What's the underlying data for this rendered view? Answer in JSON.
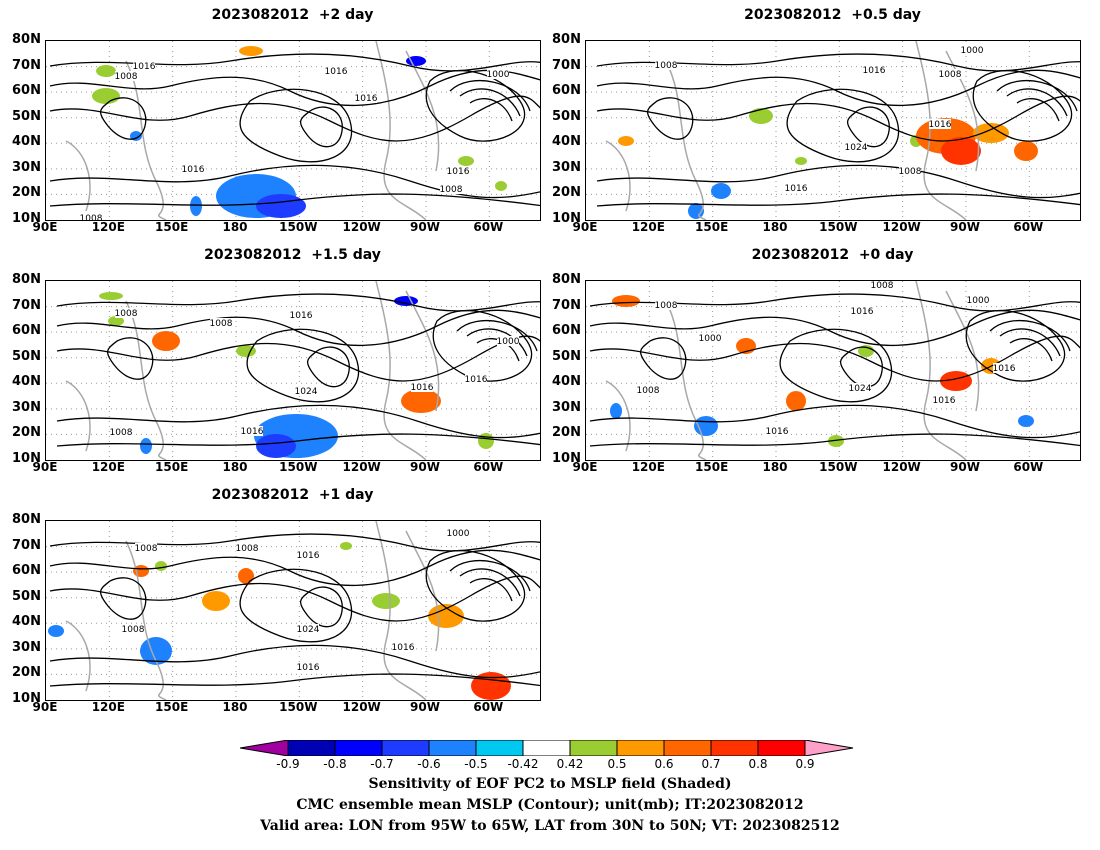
{
  "panels": [
    {
      "id": "p2",
      "title": "2023082012  +2 day"
    },
    {
      "id": "p05",
      "title": "2023082012  +0.5 day"
    },
    {
      "id": "p15",
      "title": "2023082012  +1.5 day"
    },
    {
      "id": "p0",
      "title": "2023082012  +0 day"
    },
    {
      "id": "p1",
      "title": "2023082012  +1 day"
    }
  ],
  "lat_labels": [
    "80N",
    "70N",
    "60N",
    "50N",
    "40N",
    "30N",
    "20N",
    "10N"
  ],
  "lon_labels": [
    "90E",
    "120E",
    "150E",
    "180",
    "150W",
    "120W",
    "90W",
    "60W"
  ],
  "colorbar": {
    "ticks": [
      "-0.9",
      "-0.8",
      "-0.7",
      "-0.6",
      "-0.5",
      "-0.42",
      "0.42",
      "0.5",
      "0.6",
      "0.7",
      "0.8",
      "0.9"
    ],
    "colors": [
      "#0000b4",
      "#0000ff",
      "#1e3cff",
      "#1e82ff",
      "#00c8f0",
      "#ffffff",
      "#9acd32",
      "#ff9900",
      "#ff6600",
      "#ff3300",
      "#ff0000"
    ],
    "low_color": "#a000a0",
    "high_color": "#ffa0c8"
  },
  "footer": {
    "line1": "Sensitivity of EOF PC2 to MSLP field (Shaded)",
    "line2": "CMC ensemble mean MSLP (Contour); unit(mb); IT:2023082012",
    "line3": "Valid area: LON from 95W to 65W, LAT from 30N to 50N; VT: 2023082512"
  },
  "contour_labels": {
    "p2": [
      "1016",
      "1008",
      "1016",
      "1016",
      "1000",
      "1016",
      "1016",
      "1008",
      "1008"
    ],
    "p05": [
      "1008",
      "1016",
      "1000",
      "1008",
      "1016",
      "1024",
      "1008",
      "1016"
    ],
    "p15": [
      "1008",
      "1008",
      "1016",
      "1000",
      "1024",
      "1016",
      "1016",
      "1016",
      "1008"
    ],
    "p0": [
      "1008",
      "1008",
      "1000",
      "1016",
      "1000",
      "1008",
      "1024",
      "1016",
      "1016",
      "1016"
    ],
    "p1": [
      "1008",
      "1008",
      "1016",
      "1000",
      "1008",
      "1024",
      "1016",
      "1016"
    ]
  }
}
